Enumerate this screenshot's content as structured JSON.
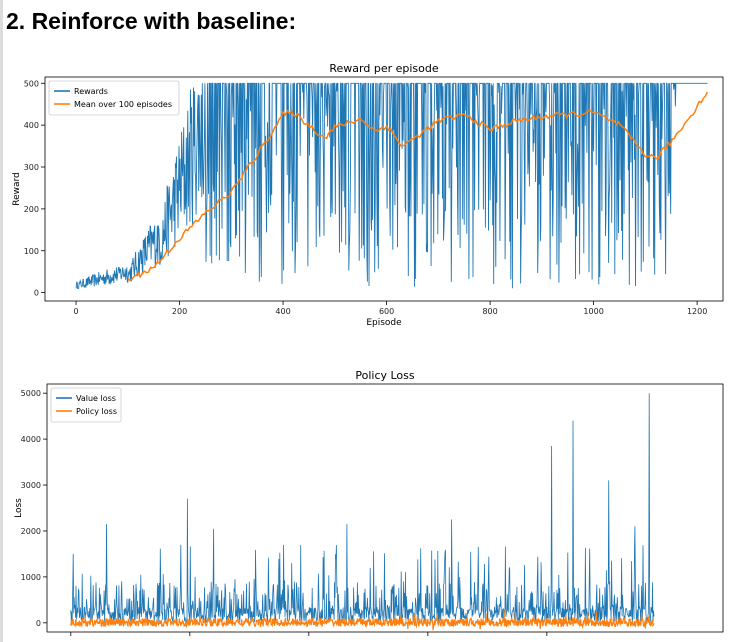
{
  "heading": "2. Reinforce with baseline:",
  "chart_data": [
    {
      "type": "line",
      "title": "Reward per episode",
      "xlabel": "Episode",
      "ylabel": "Reward",
      "xlim": [
        -60,
        1250
      ],
      "ylim": [
        -20,
        515
      ],
      "xticks": [
        0,
        200,
        400,
        600,
        800,
        1000,
        1200
      ],
      "yticks": [
        0,
        100,
        200,
        300,
        400,
        500
      ],
      "grid": false,
      "legend": "top-left",
      "n_episodes": 1220,
      "series": [
        {
          "name": "Rewards",
          "color": "#1f77b4",
          "summary": "noisy per-episode reward: ~10-60 for episodes 0-100, rising through 100-300, oscillating between ~10 and the 500 cap from ~250 to ~1170, then staying at 500 to the end",
          "segments": [
            {
              "x": [
                0,
                100
              ],
              "low": 10,
              "high": 60
            },
            {
              "x": [
                100,
                160
              ],
              "low": 20,
              "high": 160
            },
            {
              "x": [
                160,
                250
              ],
              "low": 40,
              "high": 500
            },
            {
              "x": [
                250,
                320
              ],
              "low": 60,
              "high": 500
            },
            {
              "x": [
                320,
                540
              ],
              "low": 20,
              "high": 500
            },
            {
              "x": [
                540,
                1160
              ],
              "low": 10,
              "high": 500
            },
            {
              "x": [
                1160,
                1220
              ],
              "low": 500,
              "high": 500
            }
          ]
        },
        {
          "name": "Mean over 100 episodes",
          "color": "#ff7f0e",
          "x": [
            100,
            150,
            200,
            250,
            300,
            350,
            400,
            420,
            450,
            480,
            500,
            550,
            580,
            600,
            630,
            650,
            700,
            750,
            800,
            850,
            900,
            950,
            1000,
            1050,
            1100,
            1120,
            1150,
            1180,
            1220
          ],
          "y": [
            30,
            60,
            130,
            190,
            240,
            330,
            425,
            430,
            400,
            370,
            395,
            415,
            385,
            400,
            350,
            365,
            410,
            425,
            390,
            410,
            420,
            425,
            430,
            400,
            330,
            320,
            360,
            410,
            480
          ]
        }
      ]
    },
    {
      "type": "line",
      "title": "Policy Loss",
      "xlabel": "",
      "ylabel": "Loss",
      "xlim": [
        -50,
        1370
      ],
      "ylim": [
        -200,
        5200
      ],
      "yticks": [
        0,
        1000,
        2000,
        3000,
        4000,
        5000
      ],
      "xtick_positions": [
        0,
        250,
        500,
        750,
        1000
      ],
      "grid": false,
      "legend": "top-left",
      "series": [
        {
          "name": "Value loss",
          "color": "#1f77b4",
          "summary": "dense spiky loss mostly between 0 and ~1000, with tall spikes",
          "spikes": [
            {
              "x": 5,
              "y": 1500
            },
            {
              "x": 75,
              "y": 2150
            },
            {
              "x": 245,
              "y": 2700
            },
            {
              "x": 300,
              "y": 2050
            },
            {
              "x": 580,
              "y": 2150
            },
            {
              "x": 800,
              "y": 2250
            },
            {
              "x": 1010,
              "y": 3850
            },
            {
              "x": 1055,
              "y": 4400
            },
            {
              "x": 1130,
              "y": 3100
            },
            {
              "x": 1185,
              "y": 2100
            },
            {
              "x": 1215,
              "y": 5000
            }
          ]
        },
        {
          "name": "Policy loss",
          "color": "#ff7f0e",
          "summary": "thin band near 0, roughly -200 to 300"
        }
      ]
    }
  ]
}
